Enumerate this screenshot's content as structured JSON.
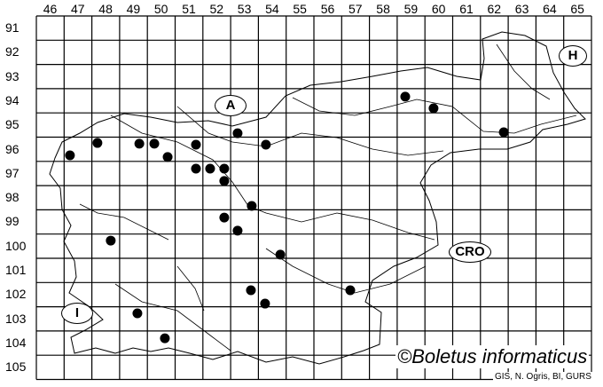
{
  "grid": {
    "columns": [
      "46",
      "47",
      "48",
      "49",
      "50",
      "51",
      "52",
      "53",
      "54",
      "55",
      "56",
      "57",
      "58",
      "59",
      "60",
      "61",
      "62",
      "63",
      "64",
      "65"
    ],
    "rows": [
      "91",
      "92",
      "93",
      "94",
      "95",
      "96",
      "97",
      "98",
      "99",
      "100",
      "101",
      "102",
      "103",
      "104",
      "105"
    ]
  },
  "regions": [
    {
      "id": "austria",
      "label": "A"
    },
    {
      "id": "hungary",
      "label": "H"
    },
    {
      "id": "croatia",
      "label": "CRO"
    },
    {
      "id": "italy",
      "label": "I"
    }
  ],
  "records": [
    {
      "x": 47.21,
      "y": 96.75
    },
    {
      "x": 48.2,
      "y": 96.24
    },
    {
      "x": 49.71,
      "y": 96.27
    },
    {
      "x": 50.25,
      "y": 96.27
    },
    {
      "x": 50.73,
      "y": 96.82
    },
    {
      "x": 51.75,
      "y": 96.31
    },
    {
      "x": 51.75,
      "y": 97.3
    },
    {
      "x": 52.26,
      "y": 97.3
    },
    {
      "x": 52.77,
      "y": 97.3
    },
    {
      "x": 52.77,
      "y": 97.81
    },
    {
      "x": 53.25,
      "y": 95.84
    },
    {
      "x": 54.27,
      "y": 96.31
    },
    {
      "x": 53.76,
      "y": 98.84
    },
    {
      "x": 52.77,
      "y": 99.32
    },
    {
      "x": 53.25,
      "y": 99.86
    },
    {
      "x": 48.68,
      "y": 100.27
    },
    {
      "x": 54.79,
      "y": 100.85
    },
    {
      "x": 53.73,
      "y": 102.32
    },
    {
      "x": 54.24,
      "y": 102.87
    },
    {
      "x": 57.31,
      "y": 102.32
    },
    {
      "x": 49.64,
      "y": 103.27
    },
    {
      "x": 50.63,
      "y": 104.3
    },
    {
      "x": 59.29,
      "y": 94.33
    },
    {
      "x": 60.31,
      "y": 94.81
    },
    {
      "x": 62.84,
      "y": 95.8
    }
  ],
  "credit": "©Boletus informaticus",
  "source": "GIS, N. Ogris, BI, GURS",
  "colors": {
    "lines": "#000000",
    "dots": "#000000",
    "background": "#ffffff"
  }
}
